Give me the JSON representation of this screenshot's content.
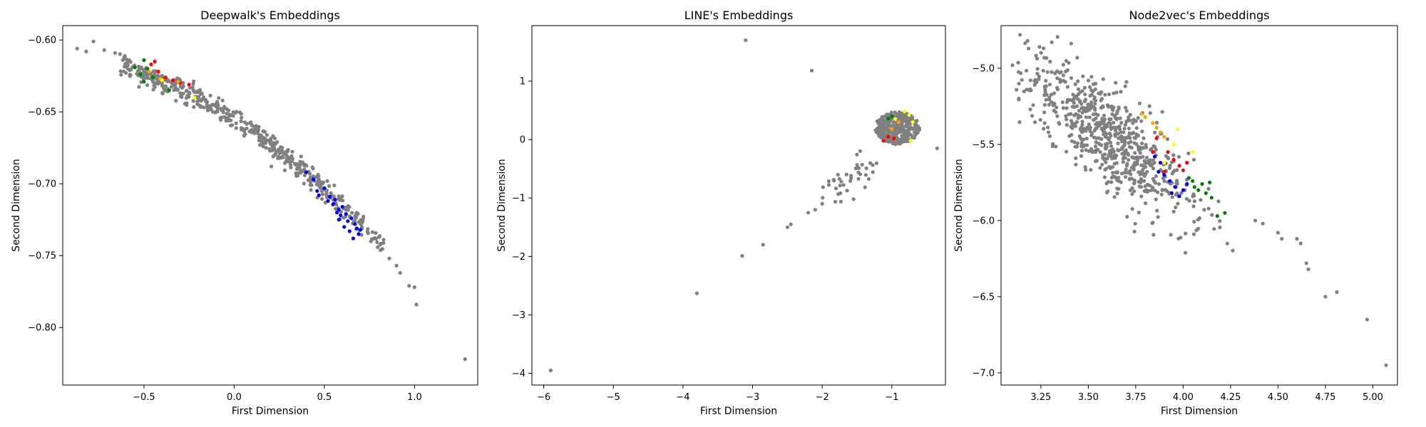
{
  "chart_data": [
    {
      "type": "scatter",
      "title": "Deepwalk's Embeddings",
      "xlabel": "First Dimension",
      "ylabel": "Second Dimension",
      "xlim": [
        -0.95,
        1.35
      ],
      "ylim": [
        -0.84,
        -0.59
      ],
      "xticks": [
        -0.5,
        0.0,
        0.5,
        1.0
      ],
      "xticklabels": [
        "−0.5",
        "0.0",
        "0.5",
        "1.0"
      ],
      "yticks": [
        -0.6,
        -0.65,
        -0.7,
        -0.75,
        -0.8
      ],
      "yticklabels": [
        "−0.60",
        "−0.65",
        "−0.70",
        "−0.75",
        "−0.80"
      ],
      "grid": false,
      "background_series": {
        "color": "#808080",
        "curve": {
          "x0": -0.62,
          "x1": 0.83,
          "y_eq": "-0.655 - 0.08*x - 0.035*x*x"
        },
        "count": 520,
        "spread": 0.004,
        "outliers": [
          [
            -0.87,
            -0.606
          ],
          [
            -0.82,
            -0.608
          ],
          [
            -0.78,
            -0.601
          ],
          [
            -0.72,
            -0.607
          ],
          [
            -0.66,
            -0.609
          ],
          [
            0.86,
            -0.752
          ],
          [
            0.9,
            -0.757
          ],
          [
            0.92,
            -0.762
          ],
          [
            0.97,
            -0.771
          ],
          [
            1.0,
            -0.772
          ],
          [
            1.01,
            -0.784
          ],
          [
            1.28,
            -0.822
          ]
        ]
      },
      "series": [
        {
          "color": "#0000ff",
          "points": [
            [
              0.4,
              -0.692
            ],
            [
              0.44,
              -0.697
            ],
            [
              0.46,
              -0.705
            ],
            [
              0.5,
              -0.703
            ],
            [
              0.53,
              -0.709
            ],
            [
              0.55,
              -0.714
            ],
            [
              0.56,
              -0.711
            ],
            [
              0.58,
              -0.718
            ],
            [
              0.6,
              -0.716
            ],
            [
              0.62,
              -0.721
            ],
            [
              0.63,
              -0.726
            ],
            [
              0.65,
              -0.724
            ],
            [
              0.67,
              -0.728
            ],
            [
              0.64,
              -0.733
            ],
            [
              0.69,
              -0.735
            ],
            [
              0.58,
              -0.725
            ],
            [
              0.61,
              -0.73
            ],
            [
              0.66,
              -0.738
            ],
            [
              0.7,
              -0.732
            ],
            [
              0.47,
              -0.708
            ],
            [
              0.52,
              -0.712
            ],
            [
              0.57,
              -0.72
            ],
            [
              0.59,
              -0.722
            ],
            [
              0.68,
              -0.731
            ]
          ]
        },
        {
          "color": "#ff0000",
          "points": [
            [
              -0.46,
              -0.617
            ],
            [
              -0.44,
              -0.615
            ],
            [
              -0.42,
              -0.622
            ],
            [
              -0.38,
              -0.626
            ],
            [
              -0.34,
              -0.628
            ],
            [
              -0.3,
              -0.63
            ],
            [
              -0.25,
              -0.631
            ]
          ]
        },
        {
          "color": "#008000",
          "points": [
            [
              -0.5,
              -0.614
            ],
            [
              -0.55,
              -0.619
            ],
            [
              -0.52,
              -0.624
            ],
            [
              -0.48,
              -0.62
            ],
            [
              -0.45,
              -0.626
            ],
            [
              -0.5,
              -0.629
            ],
            [
              -0.36,
              -0.635
            ]
          ]
        },
        {
          "color": "#ffa500",
          "points": [
            [
              -0.47,
              -0.622
            ],
            [
              -0.41,
              -0.627
            ],
            [
              -0.31,
              -0.629
            ]
          ]
        },
        {
          "color": "#ffff00",
          "points": [
            [
              -0.4,
              -0.628
            ],
            [
              -0.22,
              -0.64
            ]
          ]
        }
      ]
    },
    {
      "type": "scatter",
      "title": "LINE's Embeddings",
      "xlabel": "First Dimension",
      "ylabel": "Second Dimension",
      "xlim": [
        -6.17,
        -0.23
      ],
      "ylim": [
        -4.2,
        1.95
      ],
      "xticks": [
        -6,
        -5,
        -4,
        -3,
        -2,
        -1
      ],
      "xticklabels": [
        "−6",
        "−5",
        "−4",
        "−3",
        "−2",
        "−1"
      ],
      "yticks": [
        1,
        0,
        -1,
        -2,
        -3,
        -4
      ],
      "yticklabels": [
        "1",
        "0",
        "−1",
        "−2",
        "−3",
        "−4"
      ],
      "grid": false,
      "background_series": {
        "color": "#808080",
        "blob": {
          "cx": -0.92,
          "cy": 0.2,
          "rx": 0.32,
          "ry": 0.28,
          "count": 320
        },
        "tail": {
          "from": [
            -1.3,
            -0.35
          ],
          "to": [
            -1.9,
            -1.0
          ],
          "count": 40,
          "spread": 0.12
        },
        "outliers": [
          [
            -3.1,
            1.7
          ],
          [
            -2.15,
            1.18
          ],
          [
            -5.9,
            -3.95
          ],
          [
            -3.8,
            -2.63
          ],
          [
            -3.15,
            -1.99
          ],
          [
            -2.85,
            -1.8
          ],
          [
            -2.5,
            -1.5
          ],
          [
            -2.45,
            -1.45
          ],
          [
            -2.2,
            -1.25
          ],
          [
            -2.1,
            -1.2
          ],
          [
            -2.0,
            -1.1
          ],
          [
            -0.35,
            -0.15
          ]
        ]
      },
      "series": [
        {
          "color": "#ffff00",
          "points": [
            [
              -0.82,
              0.48
            ],
            [
              -0.75,
              0.42
            ],
            [
              -0.73,
              -0.02
            ],
            [
              -0.95,
              0.35
            ],
            [
              -0.7,
              0.3
            ]
          ]
        },
        {
          "color": "#ff0000",
          "points": [
            [
              -1.05,
              0.05
            ],
            [
              -0.97,
              0.02
            ],
            [
              -1.12,
              -0.02
            ]
          ]
        },
        {
          "color": "#008000",
          "points": [
            [
              -1.0,
              0.4
            ],
            [
              -1.05,
              0.36
            ]
          ]
        },
        {
          "color": "#ffa500",
          "points": [
            [
              -0.9,
              0.3
            ],
            [
              -1.0,
              0.18
            ]
          ]
        }
      ]
    },
    {
      "type": "scatter",
      "title": "Node2vec's Embeddings",
      "xlabel": "First Dimension",
      "ylabel": "Second Dimension",
      "xlim": [
        3.04,
        5.13
      ],
      "ylim": [
        -7.08,
        -4.72
      ],
      "xticks": [
        3.25,
        3.5,
        3.75,
        4.0,
        4.25,
        4.5,
        4.75,
        5.0
      ],
      "xticklabels": [
        "3.25",
        "3.50",
        "3.75",
        "4.00",
        "4.25",
        "4.50",
        "4.75",
        "5.00"
      ],
      "yticks": [
        -5.0,
        -5.5,
        -6.0,
        -6.5,
        -7.0
      ],
      "yticklabels": [
        "−5.0",
        "−5.5",
        "−6.0",
        "−6.5",
        "−7.0"
      ],
      "grid": false,
      "background_series": {
        "color": "#808080",
        "band": {
          "x0": 3.12,
          "x1": 4.3,
          "y_eq": "-5.05 - 0.98*(x-3.2)",
          "count": 700,
          "spread": 0.16
        },
        "outliers": [
          [
            3.14,
            -4.78
          ],
          [
            3.18,
            -4.82
          ],
          [
            3.1,
            -4.98
          ],
          [
            4.38,
            -6.0
          ],
          [
            4.42,
            -6.02
          ],
          [
            4.5,
            -6.08
          ],
          [
            4.52,
            -6.12
          ],
          [
            4.6,
            -6.12
          ],
          [
            4.62,
            -6.15
          ],
          [
            4.65,
            -6.28
          ],
          [
            4.66,
            -6.32
          ],
          [
            4.75,
            -6.5
          ],
          [
            4.81,
            -6.47
          ],
          [
            4.97,
            -6.65
          ],
          [
            5.07,
            -6.95
          ]
        ]
      },
      "series": [
        {
          "color": "#ffa500",
          "points": [
            [
              3.78,
              -5.3
            ],
            [
              3.8,
              -5.32
            ],
            [
              3.84,
              -5.36
            ],
            [
              3.88,
              -5.42
            ],
            [
              3.9,
              -5.45
            ],
            [
              3.86,
              -5.39
            ]
          ]
        },
        {
          "color": "#ffff00",
          "points": [
            [
              3.97,
              -5.4
            ],
            [
              3.95,
              -5.5
            ],
            [
              3.9,
              -5.62
            ],
            [
              4.05,
              -5.55
            ]
          ]
        },
        {
          "color": "#ff0000",
          "points": [
            [
              3.86,
              -5.46
            ],
            [
              3.92,
              -5.55
            ],
            [
              3.95,
              -5.6
            ],
            [
              3.98,
              -5.64
            ],
            [
              4.02,
              -5.62
            ],
            [
              3.84,
              -5.55
            ],
            [
              3.9,
              -5.68
            ],
            [
              4.0,
              -5.67
            ]
          ]
        },
        {
          "color": "#0000ff",
          "points": [
            [
              3.85,
              -5.58
            ],
            [
              3.88,
              -5.62
            ],
            [
              3.9,
              -5.7
            ],
            [
              3.93,
              -5.74
            ],
            [
              3.96,
              -5.78
            ],
            [
              3.98,
              -5.84
            ],
            [
              4.0,
              -5.8
            ],
            [
              4.02,
              -5.76
            ],
            [
              3.94,
              -5.82
            ],
            [
              3.87,
              -5.68
            ]
          ]
        },
        {
          "color": "#008000",
          "points": [
            [
              4.03,
              -5.72
            ],
            [
              4.06,
              -5.78
            ],
            [
              4.08,
              -5.8
            ],
            [
              4.1,
              -5.76
            ],
            [
              4.12,
              -5.82
            ],
            [
              4.14,
              -5.75
            ],
            [
              4.15,
              -5.85
            ],
            [
              4.18,
              -5.97
            ],
            [
              4.22,
              -5.95
            ],
            [
              4.05,
              -5.74
            ]
          ]
        }
      ]
    }
  ]
}
